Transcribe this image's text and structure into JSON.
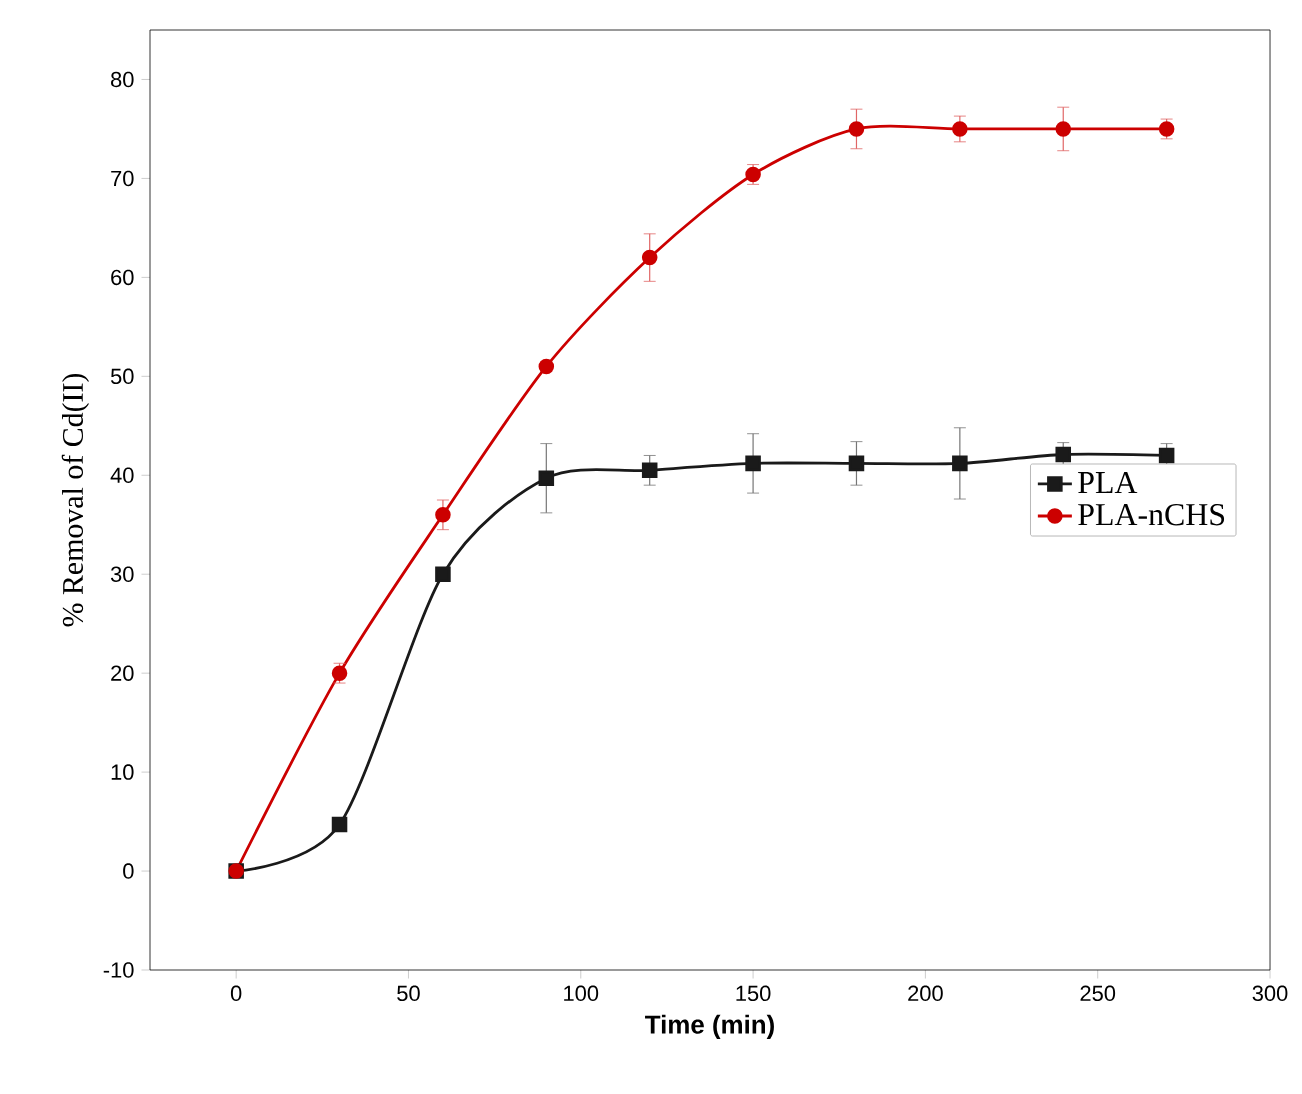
{
  "chart_data": {
    "type": "line",
    "xlabel": "Time (min)",
    "ylabel": "% Removal of Cd(II)",
    "x": [
      0,
      30,
      60,
      90,
      120,
      150,
      180,
      210,
      240,
      270
    ],
    "series": [
      {
        "name": "PLA",
        "color": "#1a1a1a",
        "marker": "square",
        "values": [
          0,
          4.7,
          30,
          39.7,
          40.5,
          41.2,
          41.2,
          41.2,
          42.1,
          42
        ],
        "errors": [
          null,
          null,
          null,
          3.5,
          1.5,
          3,
          2.2,
          3.6,
          1.2,
          1.2
        ]
      },
      {
        "name": "PLA-nCHS",
        "color": "#cc0000",
        "marker": "circle",
        "values": [
          0,
          20,
          36,
          51,
          62,
          70.4,
          75,
          75,
          75,
          75
        ],
        "errors": [
          null,
          1,
          1.5,
          0.5,
          2.4,
          1,
          2,
          1.3,
          2.2,
          1
        ]
      }
    ],
    "xlim": [
      -25,
      300
    ],
    "ylim": [
      -10,
      85
    ],
    "xticks": [
      0,
      50,
      100,
      150,
      200,
      250,
      300
    ],
    "yticks": [
      -10,
      0,
      10,
      20,
      30,
      40,
      50,
      60,
      70,
      80
    ],
    "legend": "right",
    "grid": false
  }
}
